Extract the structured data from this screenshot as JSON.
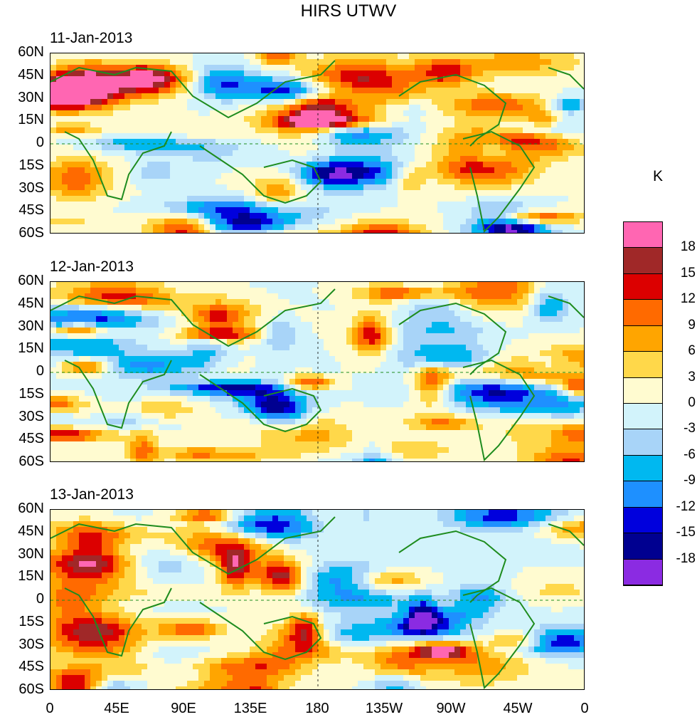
{
  "title": "HIRS UTWV",
  "unit": "K",
  "colors": {
    "land_outline": "#1e8c1e",
    "background": "#fffad0"
  },
  "panels": [
    {
      "date": "11-Jan-2013"
    },
    {
      "date": "12-Jan-2013"
    },
    {
      "date": "13-Jan-2013"
    }
  ],
  "lat_labels": [
    "60N",
    "45N",
    "30N",
    "15N",
    "0",
    "15S",
    "30S",
    "45S",
    "60S"
  ],
  "lon_labels": [
    "0",
    "45E",
    "90E",
    "135E",
    "180",
    "135W",
    "90W",
    "45W",
    "0"
  ],
  "colorbar": {
    "labels": [
      "18",
      "15",
      "12",
      "9",
      "6",
      "3",
      "0",
      "-3",
      "-6",
      "-9",
      "-12",
      "-15",
      "-18"
    ],
    "colors": [
      "#ff66b2",
      "#a02828",
      "#dc0000",
      "#ff6a00",
      "#ffa500",
      "#ffd84a",
      "#fffbd0",
      "#d2f3fb",
      "#a8d4f8",
      "#00b8f0",
      "#1e90ff",
      "#0000dd",
      "#000090",
      "#8b2be2"
    ]
  }
}
